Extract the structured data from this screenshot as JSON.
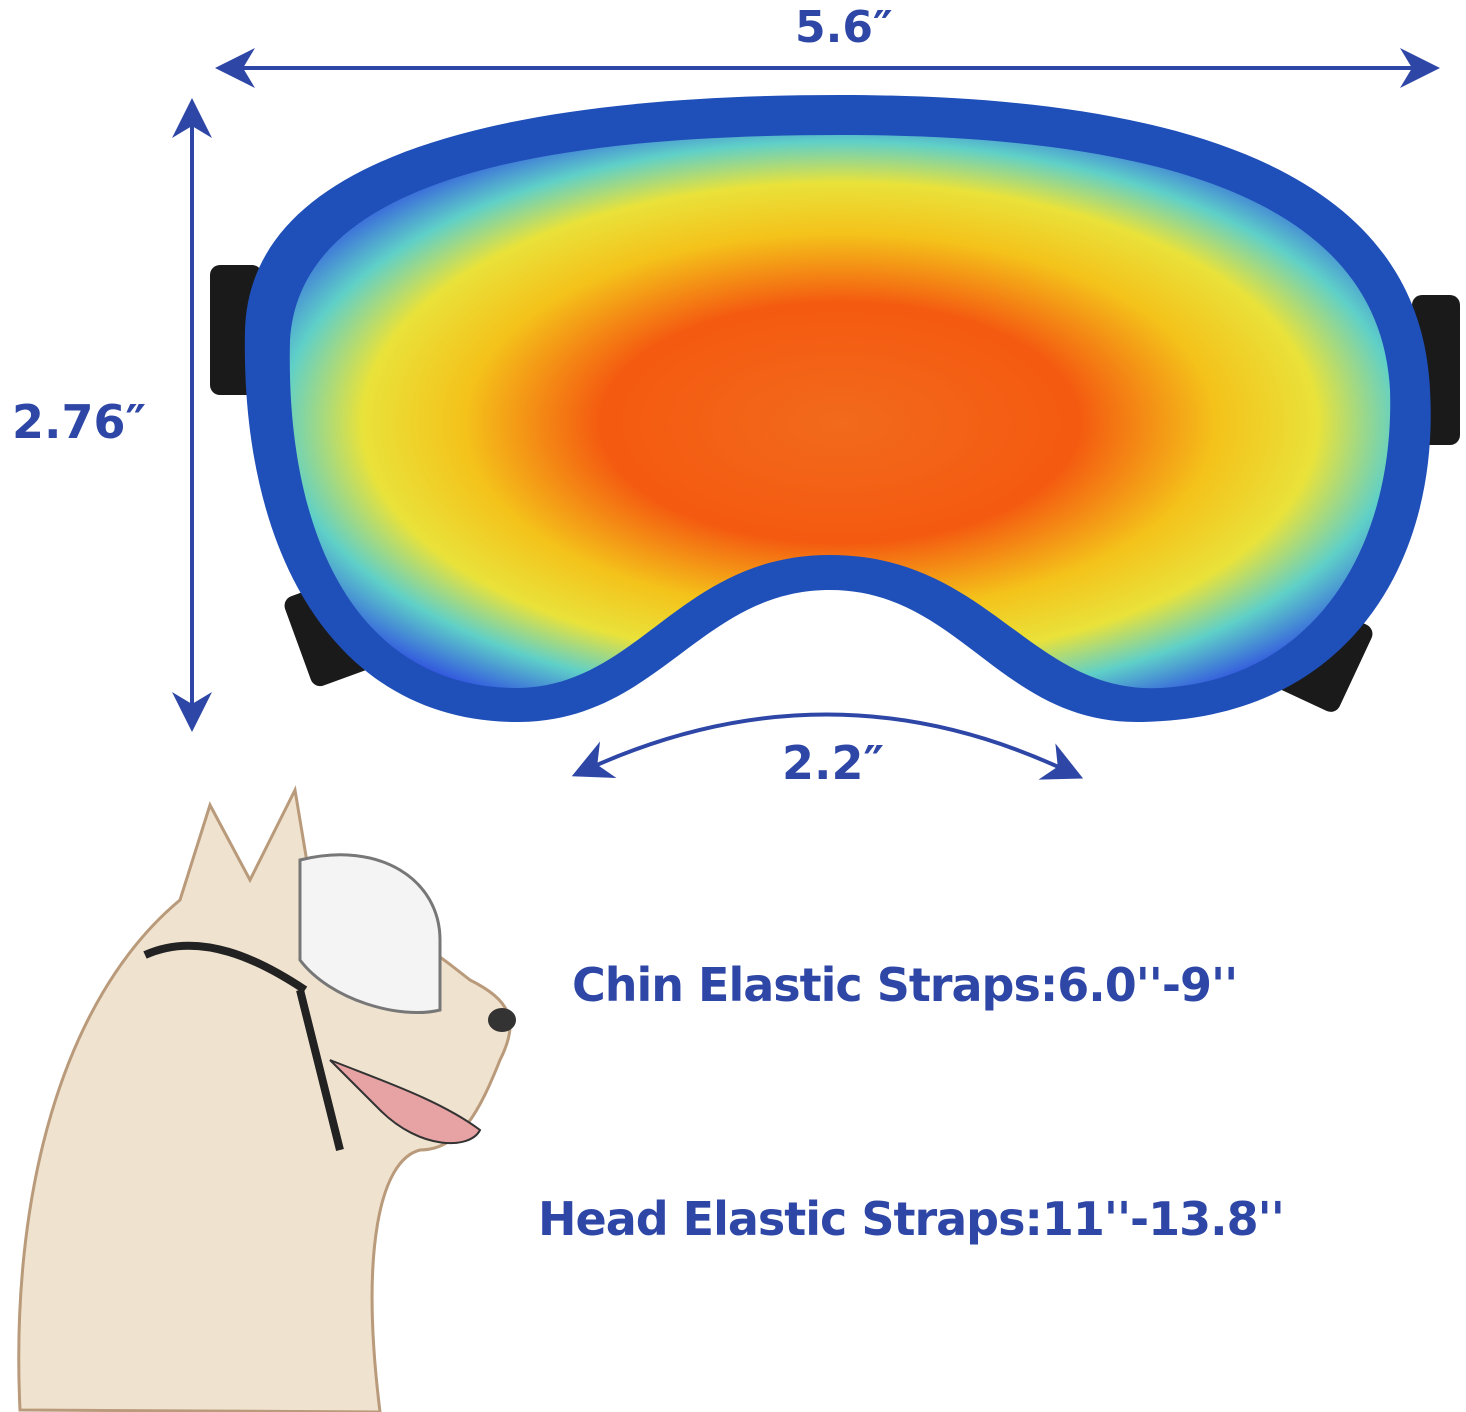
{
  "dimensions": {
    "width_label": "5.6″",
    "height_label": "2.76″",
    "nose_label": "2.2″"
  },
  "straps": {
    "chin": "Chin Elastic Straps:6.0''-9''",
    "head": "Head Elastic Straps:11''-13.8''"
  },
  "colors": {
    "text": "#2e47a6",
    "frame": "#1f4fb8",
    "strap": "#1a1a1a"
  },
  "icons": {
    "goggles": "dog-goggles-image",
    "dog": "husky-sketch-image"
  }
}
